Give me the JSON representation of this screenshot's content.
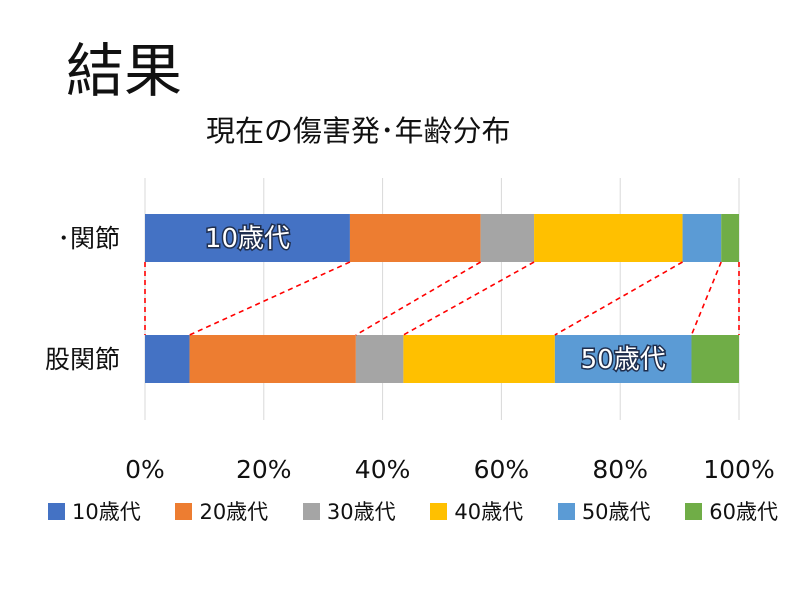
{
  "slide": {
    "title": "結果"
  },
  "chart_data": {
    "type": "bar",
    "orientation": "horizontal",
    "stacked": true,
    "normalized": true,
    "title": "現在の傷害発･年齢分布",
    "categories": [
      "･関節",
      "股関節"
    ],
    "series": [
      {
        "name": "10歳代",
        "color": "#4472C4",
        "values": [
          34.5,
          7.5
        ]
      },
      {
        "name": "20歳代",
        "color": "#ED7D31",
        "values": [
          22.0,
          28.0
        ]
      },
      {
        "name": "30歳代",
        "color": "#A5A5A5",
        "values": [
          9.0,
          8.0
        ]
      },
      {
        "name": "40歳代",
        "color": "#FFC000",
        "values": [
          25.0,
          25.5
        ]
      },
      {
        "name": "50歳代",
        "color": "#5B9BD5",
        "values": [
          6.5,
          23.0
        ]
      },
      {
        "name": "60歳代",
        "color": "#70AD47",
        "values": [
          3.0,
          8.0
        ]
      }
    ],
    "xlim": [
      0,
      100
    ],
    "x_ticks": [
      "0%",
      "20%",
      "40%",
      "60%",
      "80%",
      "100%"
    ],
    "grid": true,
    "legend": "bottom",
    "annotations": [
      {
        "text": "10歳代",
        "category": "･関節",
        "series": "10歳代"
      },
      {
        "text": "50歳代",
        "category": "股関節",
        "series": "50歳代"
      }
    ],
    "connector_lines": "series boundaries between bars, red dashed"
  }
}
